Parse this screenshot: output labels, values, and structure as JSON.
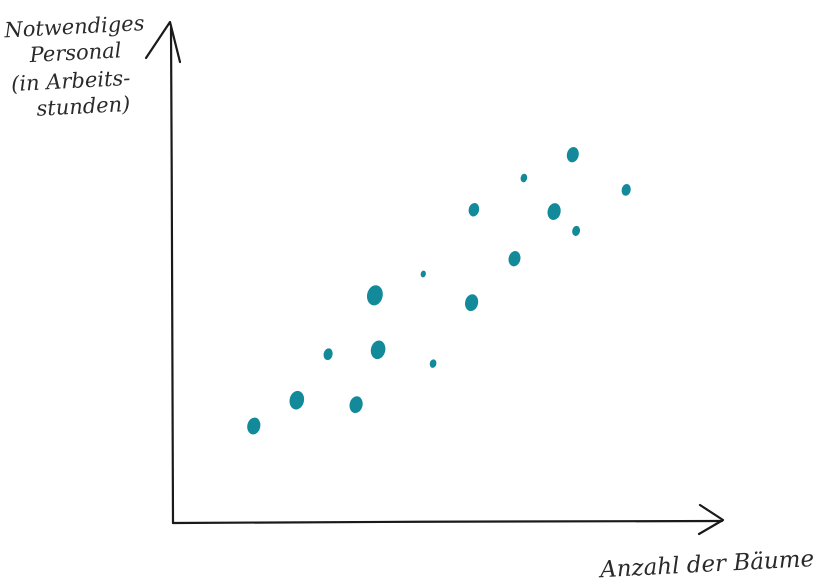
{
  "chart_data": {
    "type": "scatter",
    "title": "",
    "ylabel_lines": [
      "Notwendiges",
      "Personal",
      "(in Arbeits-",
      "stunden)"
    ],
    "xlabel": "Anzahl der Bäume",
    "xlim": [
      0,
      100
    ],
    "ylim": [
      0,
      100
    ],
    "grid": false,
    "legend": "none",
    "marker_color": "#138a9a",
    "axis_color": "#1a1a1a",
    "points": [
      {
        "x": 14.7,
        "y": 19.6,
        "size": 1.0
      },
      {
        "x": 22.5,
        "y": 24.8,
        "size": 1.1
      },
      {
        "x": 33.3,
        "y": 23.9,
        "size": 1.0
      },
      {
        "x": 28.2,
        "y": 34.1,
        "size": 0.7
      },
      {
        "x": 37.3,
        "y": 35.0,
        "size": 1.1
      },
      {
        "x": 36.7,
        "y": 46.0,
        "size": 1.2
      },
      {
        "x": 47.3,
        "y": 32.2,
        "size": 0.5
      },
      {
        "x": 45.5,
        "y": 50.3,
        "size": 0.4
      },
      {
        "x": 54.3,
        "y": 44.5,
        "size": 1.0
      },
      {
        "x": 54.7,
        "y": 63.3,
        "size": 0.8
      },
      {
        "x": 62.1,
        "y": 53.4,
        "size": 0.9
      },
      {
        "x": 63.8,
        "y": 69.7,
        "size": 0.5
      },
      {
        "x": 69.3,
        "y": 62.9,
        "size": 1.0
      },
      {
        "x": 73.3,
        "y": 59.0,
        "size": 0.6
      },
      {
        "x": 72.7,
        "y": 74.4,
        "size": 0.9
      },
      {
        "x": 82.4,
        "y": 67.3,
        "size": 0.7
      }
    ]
  }
}
